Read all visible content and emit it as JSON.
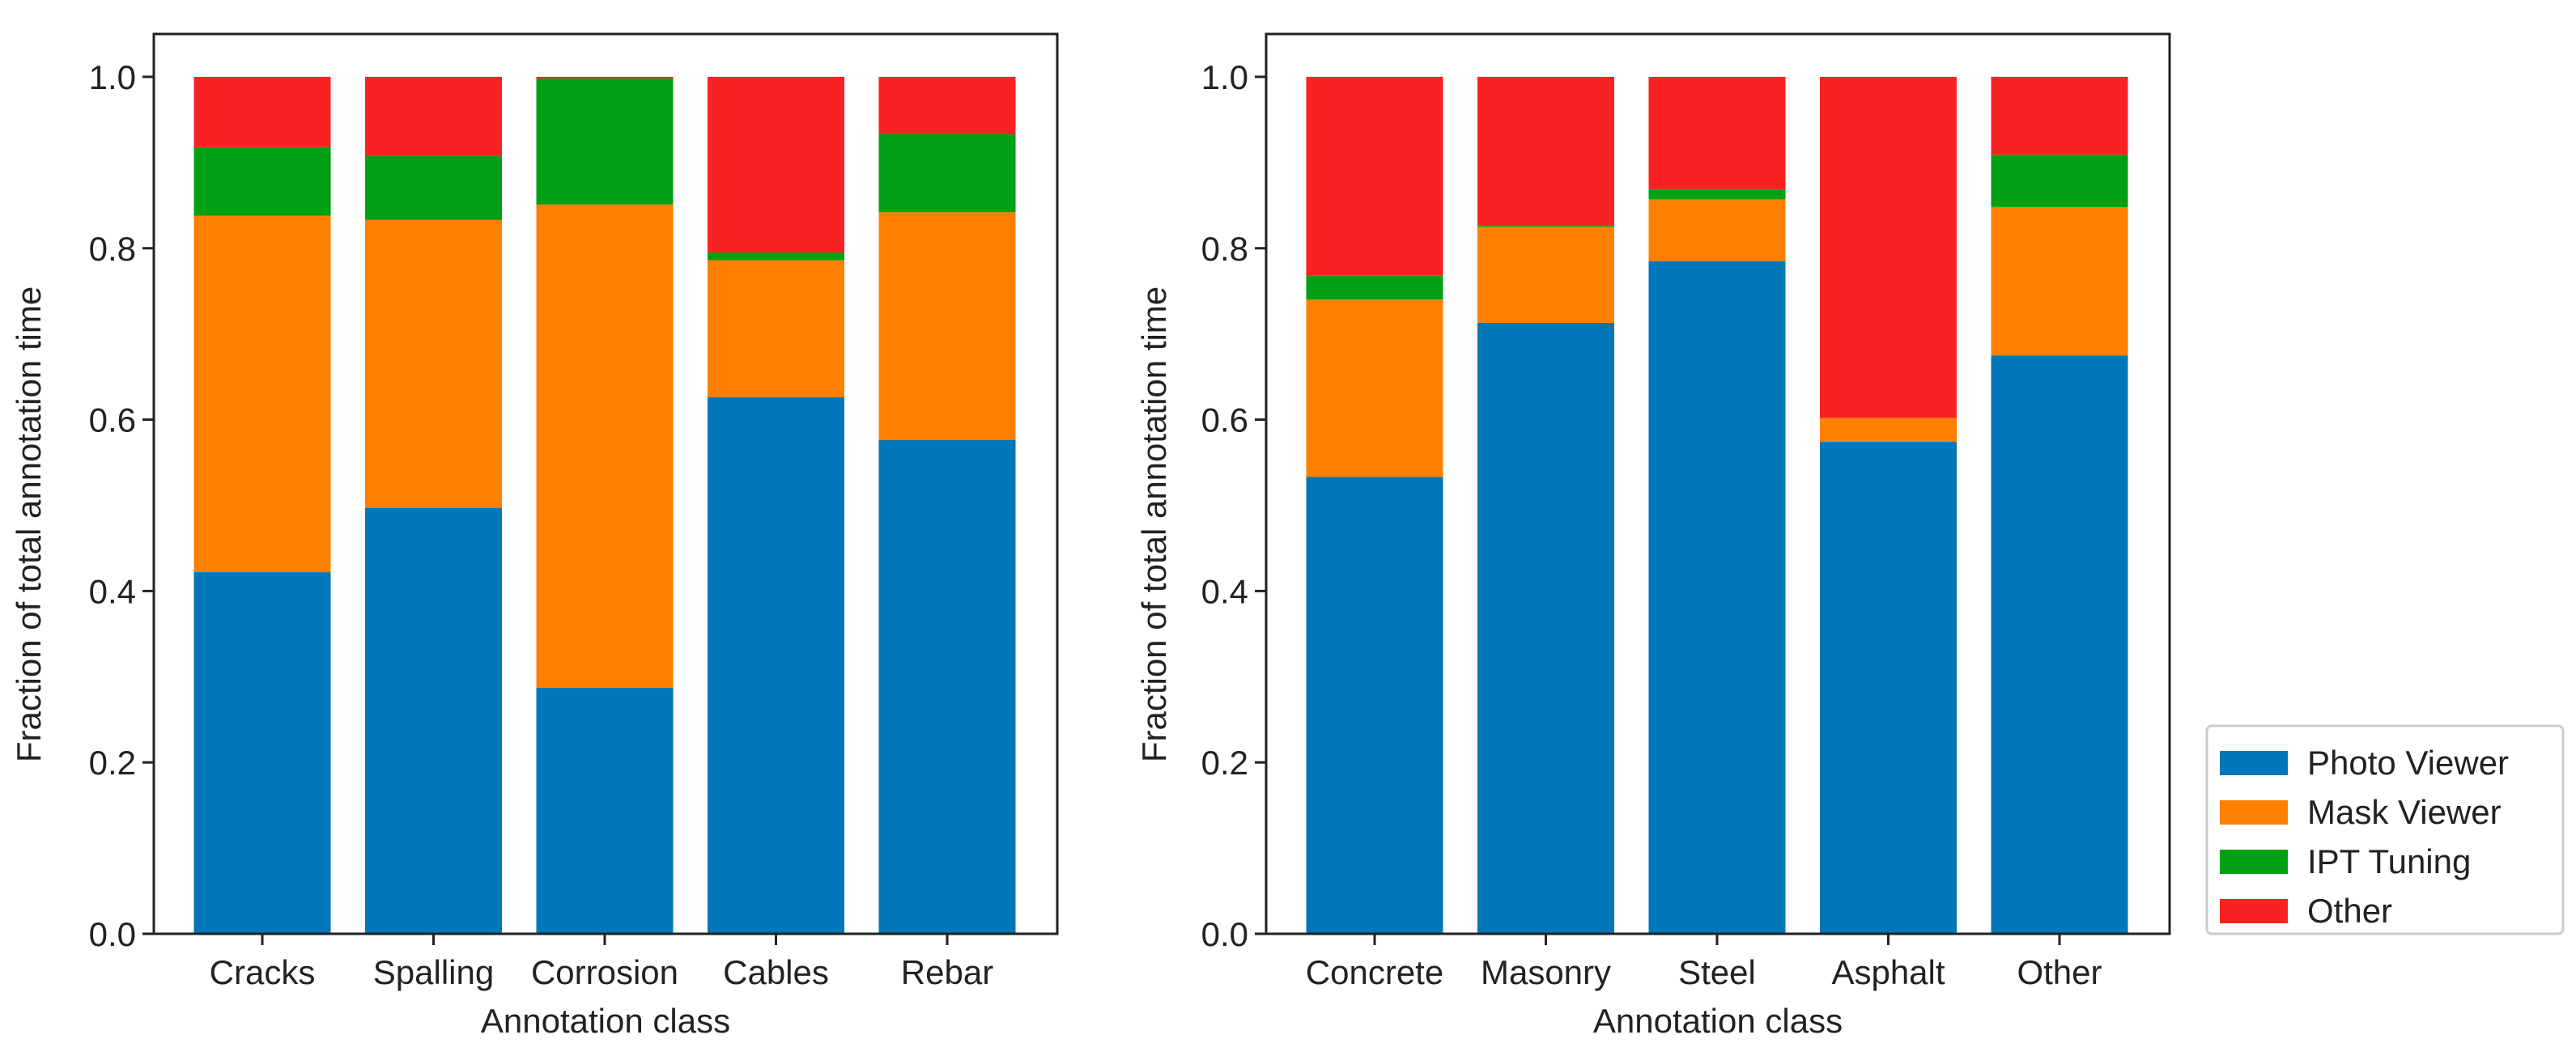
{
  "legend": {
    "placement": "lower-right outside",
    "entries": [
      "Photo Viewer",
      "Mask Viewer",
      "IPT Tuning",
      "Other"
    ]
  },
  "colors": {
    "Photo Viewer": "#0077b8",
    "Mask Viewer": "#ff7f00",
    "IPT Tuning": "#00a014",
    "Other": "#f82223"
  },
  "chart_data": [
    {
      "type": "bar",
      "stacked": true,
      "title": "",
      "xlabel": "Annotation class",
      "ylabel": "Fraction of total annotation time",
      "ylim": [
        0,
        1.05
      ],
      "yticks": [
        "0.0",
        "0.2",
        "0.4",
        "0.6",
        "0.8",
        "1.0"
      ],
      "grid": false,
      "categories": [
        "Cracks",
        "Spalling",
        "Corrosion",
        "Cables",
        "Rebar"
      ],
      "series": [
        {
          "name": "Photo Viewer",
          "values": [
            0.422,
            0.497,
            0.287,
            0.626,
            0.576
          ]
        },
        {
          "name": "Mask Viewer",
          "values": [
            0.416,
            0.336,
            0.564,
            0.16,
            0.266
          ]
        },
        {
          "name": "IPT Tuning",
          "values": [
            0.08,
            0.075,
            0.147,
            0.009,
            0.091
          ]
        },
        {
          "name": "Other",
          "values": [
            0.082,
            0.092,
            0.002,
            0.205,
            0.067
          ]
        }
      ]
    },
    {
      "type": "bar",
      "stacked": true,
      "title": "",
      "xlabel": "Annotation class",
      "ylabel": "Fraction of total annotation time",
      "ylim": [
        0,
        1.05
      ],
      "yticks": [
        "0.0",
        "0.2",
        "0.4",
        "0.6",
        "0.8",
        "1.0"
      ],
      "grid": false,
      "categories": [
        "Concrete",
        "Masonry",
        "Steel",
        "Asphalt",
        "Other"
      ],
      "series": [
        {
          "name": "Photo Viewer",
          "values": [
            0.533,
            0.713,
            0.785,
            0.574,
            0.675
          ]
        },
        {
          "name": "Mask Viewer",
          "values": [
            0.207,
            0.112,
            0.072,
            0.028,
            0.173
          ]
        },
        {
          "name": "IPT Tuning",
          "values": [
            0.028,
            0.002,
            0.011,
            0.0,
            0.061
          ]
        },
        {
          "name": "Other",
          "values": [
            0.232,
            0.173,
            0.132,
            0.398,
            0.091
          ]
        }
      ]
    }
  ]
}
